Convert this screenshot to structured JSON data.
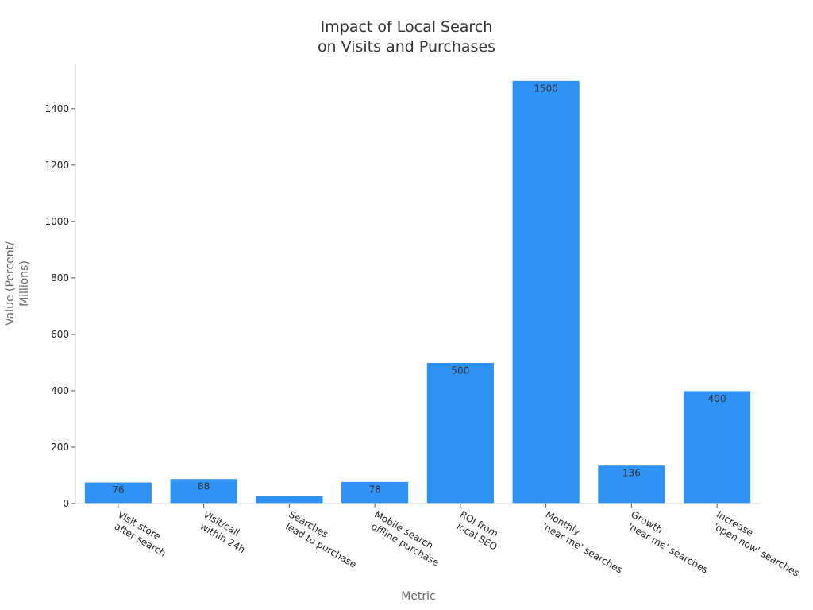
{
  "chart_data": {
    "type": "bar",
    "title_lines": [
      "Impact of Local Search",
      "on Visits and Purchases"
    ],
    "xlabel": "Metric",
    "ylabel_lines": [
      "Value (Percent/",
      "Millions)"
    ],
    "categories": [
      [
        "Visit store",
        "after search"
      ],
      [
        "Visit/call",
        "within 24h"
      ],
      [
        "Searches",
        "lead to purchase"
      ],
      [
        "Mobile search",
        "offline purchase"
      ],
      [
        "ROI from",
        "local SEO"
      ],
      [
        "Monthly",
        "'near me' searches"
      ],
      [
        "Growth",
        "'near me' searches"
      ],
      [
        "Increase",
        "'open now' searches"
      ]
    ],
    "values": [
      76,
      88,
      28,
      78,
      500,
      1500,
      136,
      400
    ],
    "data_labels": [
      "76",
      "88",
      "-",
      "78",
      "500",
      "1500",
      "136",
      "400"
    ],
    "ylim": [
      0,
      1560
    ],
    "yticks": [
      0,
      200,
      400,
      600,
      800,
      1000,
      1200,
      1400
    ],
    "bar_color": "#2f93f5",
    "grid": false,
    "legend": "none"
  }
}
